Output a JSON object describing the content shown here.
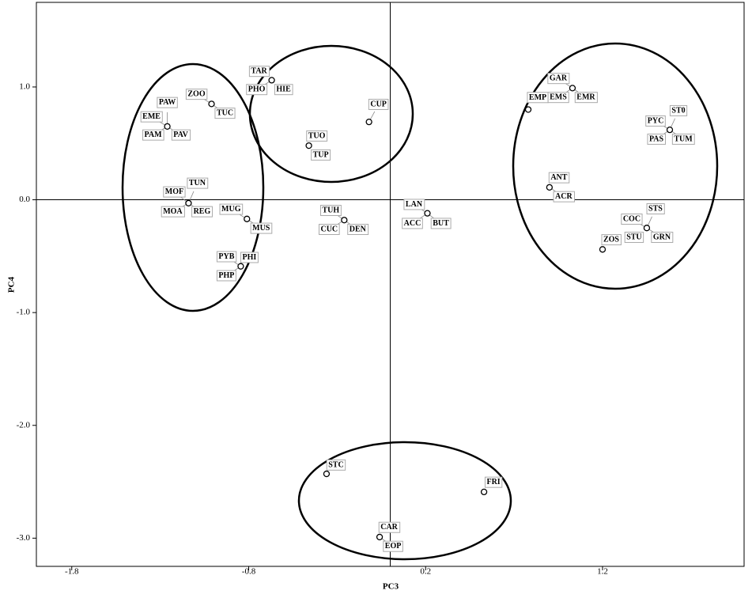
{
  "chart_data": {
    "type": "scatter",
    "x_label": "PC3",
    "y_label": "PC4",
    "xlim": [
      -2.0,
      2.0
    ],
    "xticks": [
      -1.8,
      -0.8,
      0.2,
      1.2
    ],
    "ylim": [
      -3.25,
      1.75
    ],
    "yticks": [
      {
        "value": 1,
        "label": "1.0"
      },
      {
        "value": 0,
        "label": "0.0"
      },
      {
        "value": -1,
        "label": "-1.0"
      },
      {
        "value": -2,
        "label": "-2.0"
      },
      {
        "value": -3,
        "label": "-3.0"
      }
    ],
    "points": [
      {
        "labels": [
          "PAW",
          "EME",
          "PAM",
          "PAV"
        ],
        "x": -1.26,
        "y": 0.65
      },
      {
        "labels": [
          "ZOO",
          "TUC"
        ],
        "x": -1.01,
        "y": 0.85
      },
      {
        "labels": [
          "TAR",
          "PHO",
          "HIE"
        ],
        "x": -0.67,
        "y": 1.06
      },
      {
        "labels": [
          "CUP"
        ],
        "x": -0.12,
        "y": 0.69
      },
      {
        "labels": [
          "TUO",
          "TUP"
        ],
        "x": -0.46,
        "y": 0.48
      },
      {
        "labels": [
          "MOF",
          "TUN",
          "MOA",
          "REG"
        ],
        "x": -1.14,
        "y": -0.03
      },
      {
        "labels": [
          "MUG",
          "MUS"
        ],
        "x": -0.81,
        "y": -0.17
      },
      {
        "labels": [
          "PYB",
          "PHI",
          "PHP"
        ],
        "x": -0.845,
        "y": -0.59
      },
      {
        "labels": [
          "TUH",
          "CUC",
          "DEN"
        ],
        "x": -0.26,
        "y": -0.18
      },
      {
        "labels": [
          "LAN",
          "ACC",
          "BUT"
        ],
        "x": 0.21,
        "y": -0.12
      },
      {
        "labels": [
          "EMP"
        ],
        "x": 0.78,
        "y": 0.8
      },
      {
        "labels": [
          "GAR",
          "EMS",
          "EMR"
        ],
        "x": 1.03,
        "y": 0.99
      },
      {
        "labels": [
          "ST0",
          "PYC",
          "PAS",
          "TUM"
        ],
        "x": 1.58,
        "y": 0.62
      },
      {
        "labels": [
          "ANT",
          "ACR"
        ],
        "x": 0.9,
        "y": 0.11
      },
      {
        "labels": [
          "STS",
          "COC",
          "STU",
          "GRN"
        ],
        "x": 1.45,
        "y": -0.25
      },
      {
        "labels": [
          "ZOS"
        ],
        "x": 1.2,
        "y": -0.44
      },
      {
        "labels": [
          "STC"
        ],
        "x": -0.36,
        "y": -2.43
      },
      {
        "labels": [
          "FRI"
        ],
        "x": 0.53,
        "y": -2.59
      },
      {
        "labels": [
          "CAR",
          "EOP"
        ],
        "x": -0.06,
        "y": -2.99
      }
    ]
  }
}
